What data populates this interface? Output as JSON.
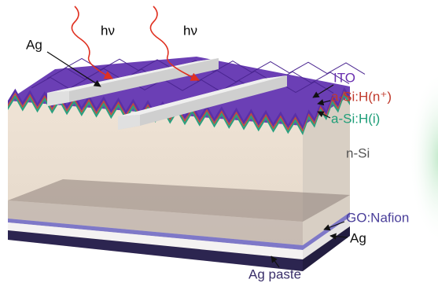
{
  "photons": [
    "hν",
    "hν"
  ],
  "labels": {
    "top_contact": "Ag",
    "ito": "ITO",
    "n_layer": "a-Si:H(n⁺)",
    "i_layer": "a-Si:H(i)",
    "substrate": "n-Si",
    "interlayer": "GO:Nafion",
    "back_contact": "Ag",
    "paste": "Ag paste"
  }
}
